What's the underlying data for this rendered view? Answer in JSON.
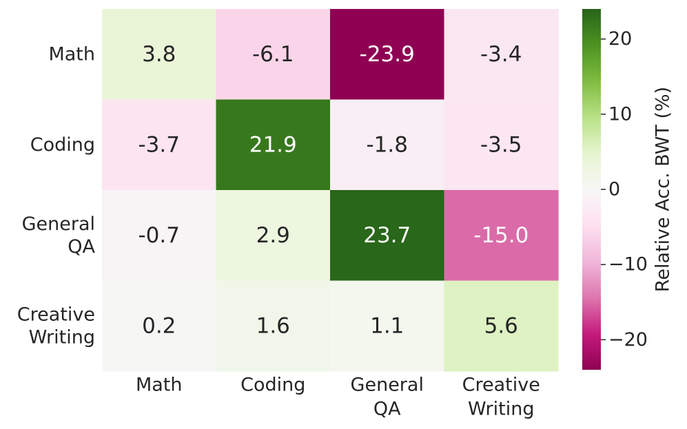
{
  "chart_data": {
    "type": "heatmap",
    "rows": [
      [
        "Math"
      ],
      [
        "Coding"
      ],
      [
        "General",
        "QA"
      ],
      [
        "Creative",
        "Writing"
      ]
    ],
    "columns": [
      [
        "Math"
      ],
      [
        "Coding"
      ],
      [
        "General",
        "QA"
      ],
      [
        "Creative",
        "Writing"
      ]
    ],
    "values": [
      [
        3.8,
        -6.1,
        -23.9,
        -3.4
      ],
      [
        -3.7,
        21.9,
        -1.8,
        -3.5
      ],
      [
        -0.7,
        2.9,
        23.7,
        -15.0
      ],
      [
        0.2,
        1.6,
        1.1,
        5.6
      ]
    ],
    "value_labels": [
      [
        "3.8",
        "-6.1",
        "-23.9",
        "-3.4"
      ],
      [
        "-3.7",
        "21.9",
        "-1.8",
        "-3.5"
      ],
      [
        "-0.7",
        "2.9",
        "23.7",
        "-15.0"
      ],
      [
        "0.2",
        "1.6",
        "1.1",
        "5.6"
      ]
    ],
    "colorbar": {
      "label": "Relative Acc. BWT (%)",
      "range": [
        -24,
        24
      ],
      "colormap": "PiYG",
      "ticks": [
        20,
        10,
        0,
        -10,
        -20
      ],
      "tick_labels": [
        "20",
        "10",
        "0",
        "−10",
        "−20"
      ]
    },
    "colors": {
      "text_dark": "#262626",
      "text_light": "#ffffff",
      "tick": "#262626"
    }
  }
}
